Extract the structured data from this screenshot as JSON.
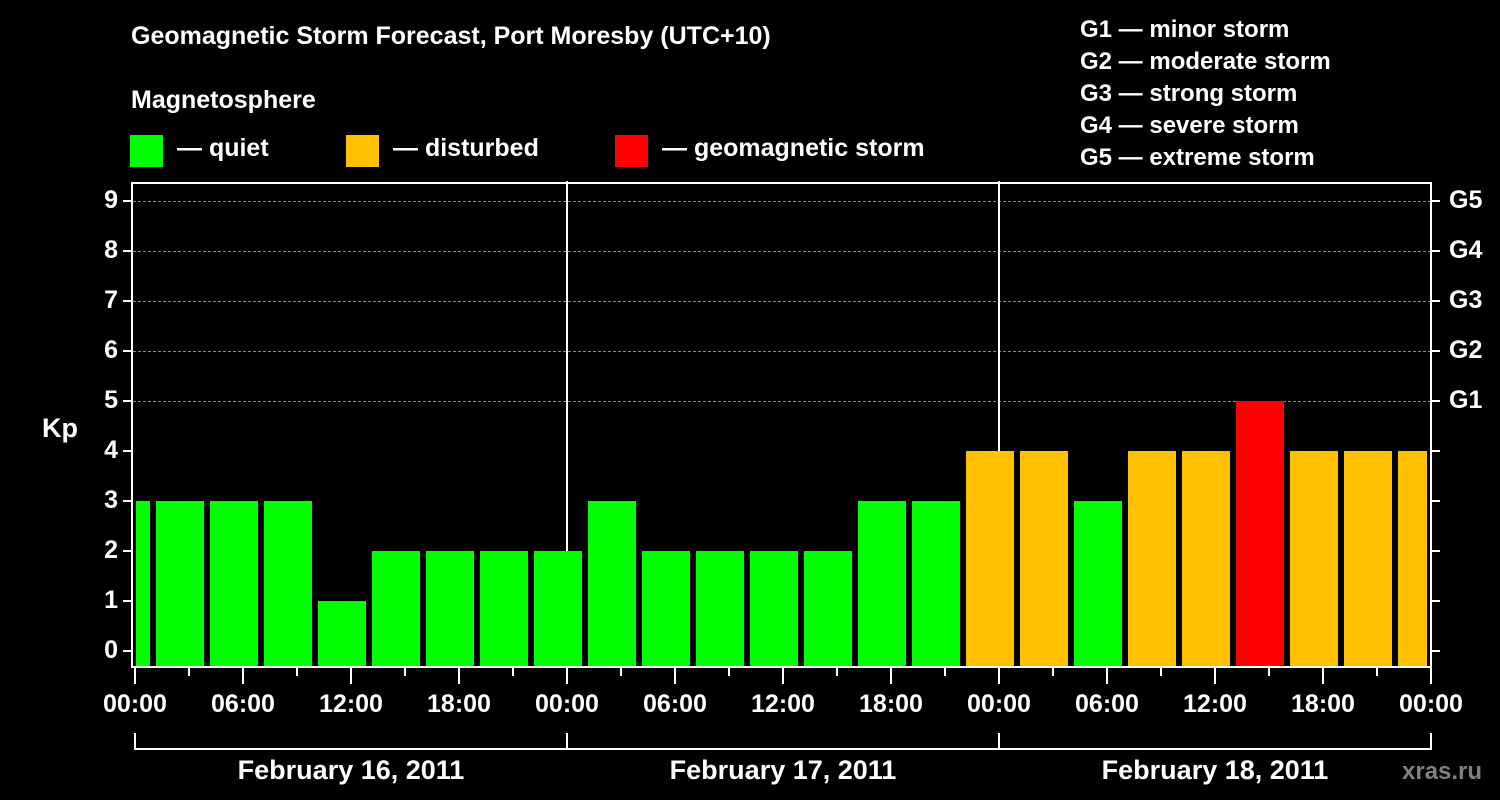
{
  "header": {
    "title": "Geomagnetic Storm Forecast, Port Moresby (UTC+10)",
    "subtitle": "Magnetosphere"
  },
  "legend": [
    {
      "label": "— quiet",
      "color": "#00FF00"
    },
    {
      "label": "— disturbed",
      "color": "#FFC000"
    },
    {
      "label": "— geomagnetic storm",
      "color": "#FF0000"
    }
  ],
  "g_scale": [
    "G1 — minor storm",
    "G2 — moderate storm",
    "G3 — strong storm",
    "G4 — severe storm",
    "G5 — extreme storm"
  ],
  "axes": {
    "y_label": "Kp",
    "y_ticks": [
      "0",
      "1",
      "2",
      "3",
      "4",
      "5",
      "6",
      "7",
      "8",
      "9"
    ],
    "right_ticks": {
      "5": "G1",
      "6": "G2",
      "7": "G3",
      "8": "G4",
      "9": "G5"
    },
    "x_ticks": [
      "00:00",
      "06:00",
      "12:00",
      "18:00",
      "00:00",
      "06:00",
      "12:00",
      "18:00",
      "00:00",
      "06:00",
      "12:00",
      "18:00",
      "00:00"
    ],
    "dates": [
      "February 16, 2011",
      "February 17, 2011",
      "February 18, 2011"
    ]
  },
  "watermark": "xras.ru",
  "colors": {
    "quiet": "#00FF00",
    "disturbed": "#FFC000",
    "storm": "#FF0000",
    "grid": "#8A8A8A",
    "background": "#000000"
  },
  "chart_data": {
    "type": "bar",
    "title": "Geomagnetic Storm Forecast, Port Moresby (UTC+10)",
    "subtitle": "Magnetosphere",
    "xlabel": "",
    "ylabel": "Kp",
    "ylim": [
      0,
      9
    ],
    "grid": "dashed horizontal lines at Kp 5-9",
    "legend_position": "top",
    "categories": [
      "Feb 16 ~00:00",
      "Feb 16 ~02:00",
      "Feb 16 ~05:00",
      "Feb 16 ~08:00",
      "Feb 16 ~11:00",
      "Feb 16 ~14:00",
      "Feb 16 ~17:00",
      "Feb 16 ~20:00",
      "Feb 16 ~23:00",
      "Feb 17 ~02:00",
      "Feb 17 ~05:00",
      "Feb 17 ~08:00",
      "Feb 17 ~11:00",
      "Feb 17 ~14:00",
      "Feb 17 ~17:00",
      "Feb 17 ~20:00",
      "Feb 17 ~23:00",
      "Feb 18 ~02:00",
      "Feb 18 ~05:00",
      "Feb 18 ~08:00",
      "Feb 18 ~11:00",
      "Feb 18 ~14:00",
      "Feb 18 ~17:00",
      "Feb 18 ~20:00",
      "Feb 18 ~23:00"
    ],
    "values": [
      3,
      3,
      3,
      3,
      1,
      2,
      2,
      2,
      2,
      3,
      2,
      2,
      2,
      2,
      3,
      3,
      4,
      4,
      3,
      4,
      4,
      5,
      4,
      4,
      4
    ],
    "status": [
      "quiet",
      "quiet",
      "quiet",
      "quiet",
      "quiet",
      "quiet",
      "quiet",
      "quiet",
      "quiet",
      "quiet",
      "quiet",
      "quiet",
      "quiet",
      "quiet",
      "quiet",
      "quiet",
      "disturbed",
      "disturbed",
      "quiet",
      "disturbed",
      "disturbed",
      "storm",
      "disturbed",
      "disturbed",
      "disturbed"
    ],
    "right_axis": {
      "5": "G1",
      "6": "G2",
      "7": "G3",
      "8": "G4",
      "9": "G5"
    }
  }
}
